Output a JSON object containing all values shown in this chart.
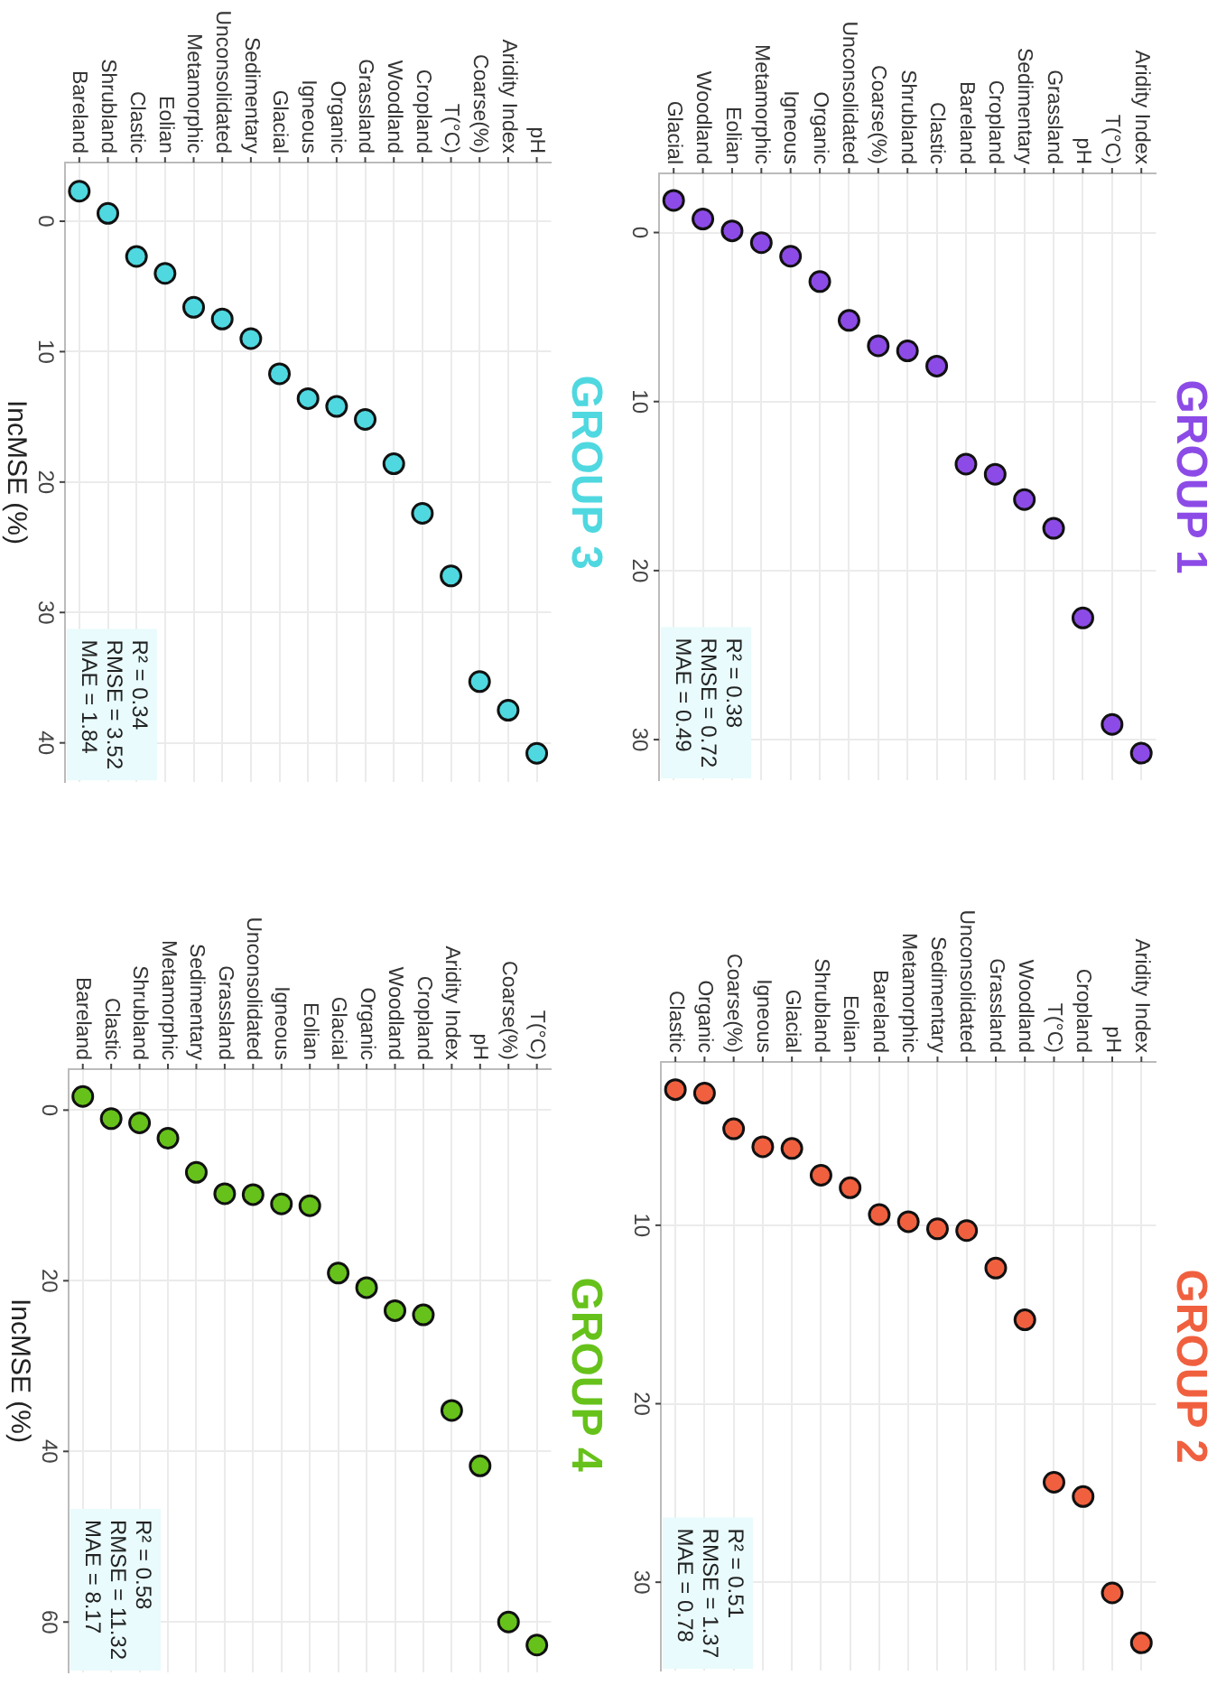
{
  "chart_data": [
    {
      "type": "scatter",
      "title": "GROUP 1",
      "marker": "circle",
      "grid": true,
      "color": "#8c4be6",
      "categories": [
        "Glacial",
        "Woodland",
        "Eolian",
        "Metamorphic",
        "Igneous",
        "Organic",
        "Unconsolidated",
        "Coarse(%)",
        "Shrubland",
        "Clastic",
        "Bareland",
        "Cropland",
        "Sedimentary",
        "Grassland",
        "pH",
        "T(°C)",
        "Aridity Index"
      ],
      "values": [
        -1.9,
        -0.8,
        -0.1,
        0.6,
        1.4,
        2.9,
        5.2,
        6.7,
        7.0,
        7.9,
        13.7,
        14.3,
        15.8,
        17.5,
        22.8,
        29.1,
        30.8
      ],
      "ylim": [
        32.4,
        -3.5
      ],
      "yticks": [
        0,
        10,
        20,
        30
      ],
      "annotations": [
        "R² = 0.38",
        "RMSE = 0.72",
        "MAE = 0.49"
      ]
    },
    {
      "type": "scatter",
      "title": "GROUP 2",
      "marker": "circle",
      "grid": true,
      "color": "#f0603f",
      "categories": [
        "Clastic",
        "Organic",
        "Coarse(%)",
        "Igneous",
        "Glacial",
        "Shrubland",
        "Eolian",
        "Bareland",
        "Metamorphic",
        "Sedimentary",
        "Unconsolidated",
        "Grassland",
        "Woodland",
        "T(°C)",
        "Cropland",
        "pH",
        "Aridity Index"
      ],
      "values": [
        2.4,
        2.6,
        4.6,
        5.6,
        5.7,
        7.2,
        7.9,
        9.4,
        9.8,
        10.2,
        10.3,
        12.4,
        15.3,
        24.4,
        25.2,
        30.6,
        33.4
      ],
      "ylim": [
        34.95,
        0.85
      ],
      "yticks": [
        10,
        20,
        30
      ],
      "annotations": [
        "R² = 0.51",
        "RMSE = 1.37",
        "MAE = 0.78"
      ]
    },
    {
      "type": "scatter",
      "title": "GROUP 3",
      "ylabel": "IncMSE (%)",
      "marker": "circle",
      "grid": true,
      "color": "#4fd8e0",
      "categories": [
        "Bareland",
        "Shrubland",
        "Clastic",
        "Eolian",
        "Metamorphic",
        "Unconsolidated",
        "Sedimentary",
        "Glacial",
        "Igneous",
        "Organic",
        "Grassland",
        "Woodland",
        "Cropland",
        "T(°C)",
        "Coarse(%)",
        "Aridity Index",
        "pH"
      ],
      "values": [
        -2.3,
        -0.6,
        2.7,
        4.0,
        6.6,
        7.5,
        9.0,
        11.7,
        13.6,
        14.2,
        15.2,
        18.6,
        22.4,
        27.2,
        35.3,
        37.5,
        40.8
      ],
      "ylim": [
        43.0,
        -4.5
      ],
      "yticks": [
        0,
        10,
        20,
        30,
        40
      ],
      "annotations": [
        "R² = 0.34",
        "RMSE = 3.52",
        "MAE = 1.84"
      ]
    },
    {
      "type": "scatter",
      "title": "GROUP 4",
      "ylabel": "IncMSE (%)",
      "marker": "circle",
      "grid": true,
      "color": "#66c21a",
      "categories": [
        "Bareland",
        "Clastic",
        "Shrubland",
        "Metamorphic",
        "Sedimentary",
        "Grassland",
        "Unconsolidated",
        "Igneous",
        "Eolian",
        "Glacial",
        "Organic",
        "Woodland",
        "Cropland",
        "Aridity Index",
        "pH",
        "Coarse(%)",
        "T(°C)"
      ],
      "values": [
        -1.6,
        1.0,
        1.5,
        3.3,
        7.3,
        9.8,
        9.9,
        11.0,
        11.2,
        19.1,
        20.8,
        23.5,
        24.0,
        35.2,
        41.7,
        60.0,
        62.7
      ],
      "ylim": [
        65.9,
        -4.8
      ],
      "yticks": [
        0,
        20,
        40,
        60
      ],
      "annotations": [
        "R² = 0.58",
        "RMSE = 11.32",
        "MAE = 8.17"
      ]
    }
  ]
}
